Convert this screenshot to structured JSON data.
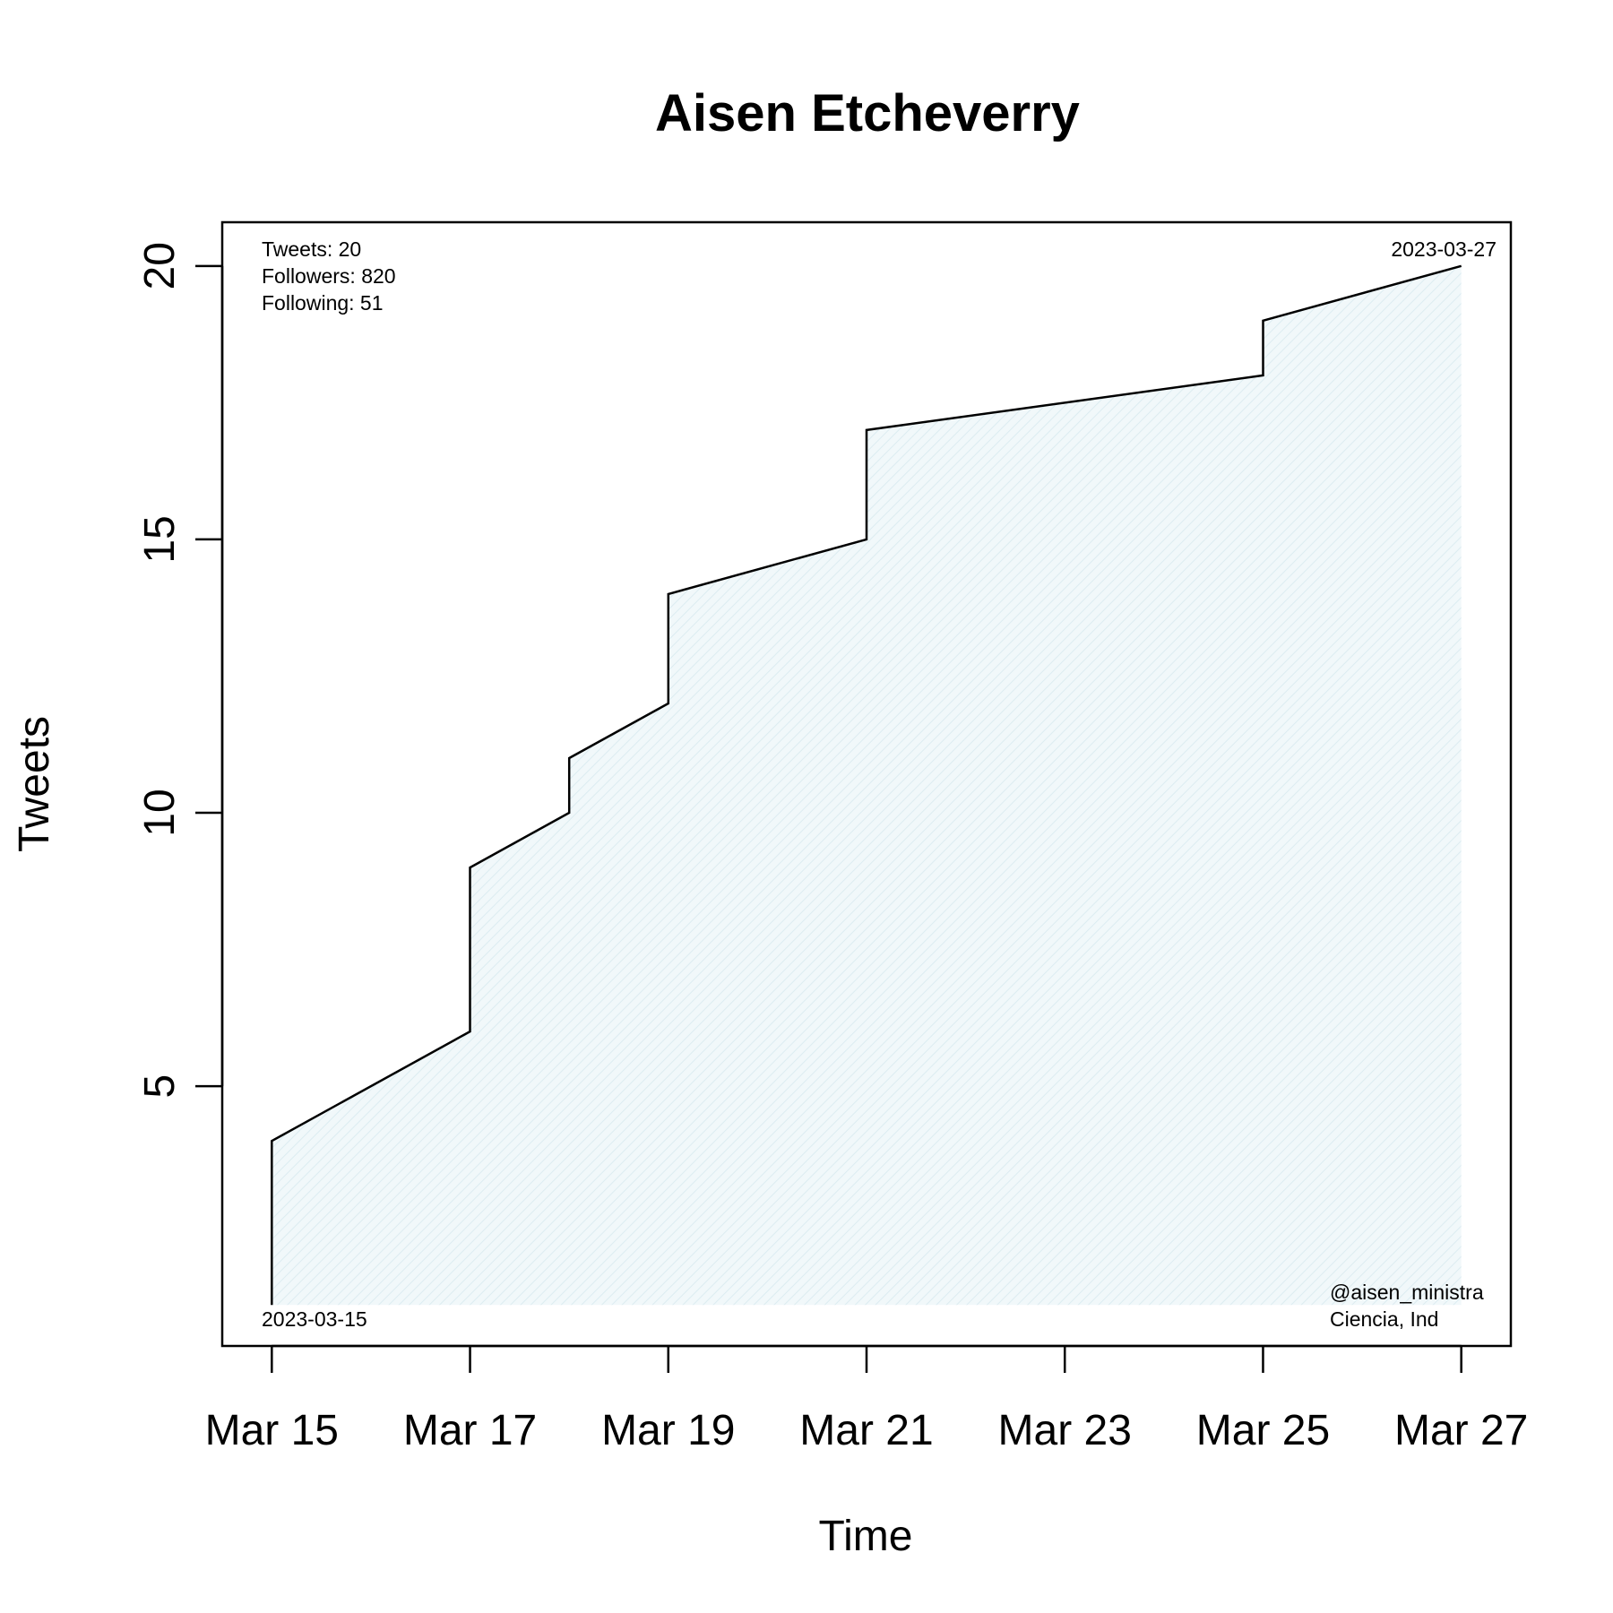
{
  "chart_data": {
    "type": "area",
    "title": "Aisen Etcheverry",
    "xlabel": "Time",
    "ylabel": "Tweets",
    "x_ticks": [
      "Mar 15",
      "Mar 17",
      "Mar 19",
      "Mar 21",
      "Mar 23",
      "Mar 25",
      "Mar 27"
    ],
    "y_ticks": [
      5,
      10,
      15,
      20
    ],
    "xlim": [
      "2023-03-14 12:00",
      "2023-03-27 12:00"
    ],
    "ylim": [
      0.25,
      20.8
    ],
    "fill_color": "#e8f3f6",
    "line_color": "#000000",
    "series": [
      {
        "points": [
          {
            "x": "2023-03-15",
            "y": 1
          },
          {
            "x": "2023-03-15",
            "y": 4
          },
          {
            "x": "2023-03-17",
            "y": 6
          },
          {
            "x": "2023-03-17",
            "y": 9
          },
          {
            "x": "2023-03-18",
            "y": 10
          },
          {
            "x": "2023-03-18",
            "y": 11
          },
          {
            "x": "2023-03-19",
            "y": 12
          },
          {
            "x": "2023-03-19",
            "y": 14
          },
          {
            "x": "2023-03-21",
            "y": 15
          },
          {
            "x": "2023-03-21",
            "y": 17
          },
          {
            "x": "2023-03-25",
            "y": 18
          },
          {
            "x": "2023-03-25",
            "y": 19
          },
          {
            "x": "2023-03-27",
            "y": 20
          }
        ]
      }
    ],
    "annotations": {
      "top_left": [
        "Tweets: 20",
        "Followers: 820",
        "Following: 51"
      ],
      "top_right": "2023-03-27",
      "bottom_left": "2023-03-15",
      "bottom_right": [
        "@aisen_ministra",
        "Ciencia, Ind"
      ]
    },
    "grid": false,
    "legend": "none"
  }
}
